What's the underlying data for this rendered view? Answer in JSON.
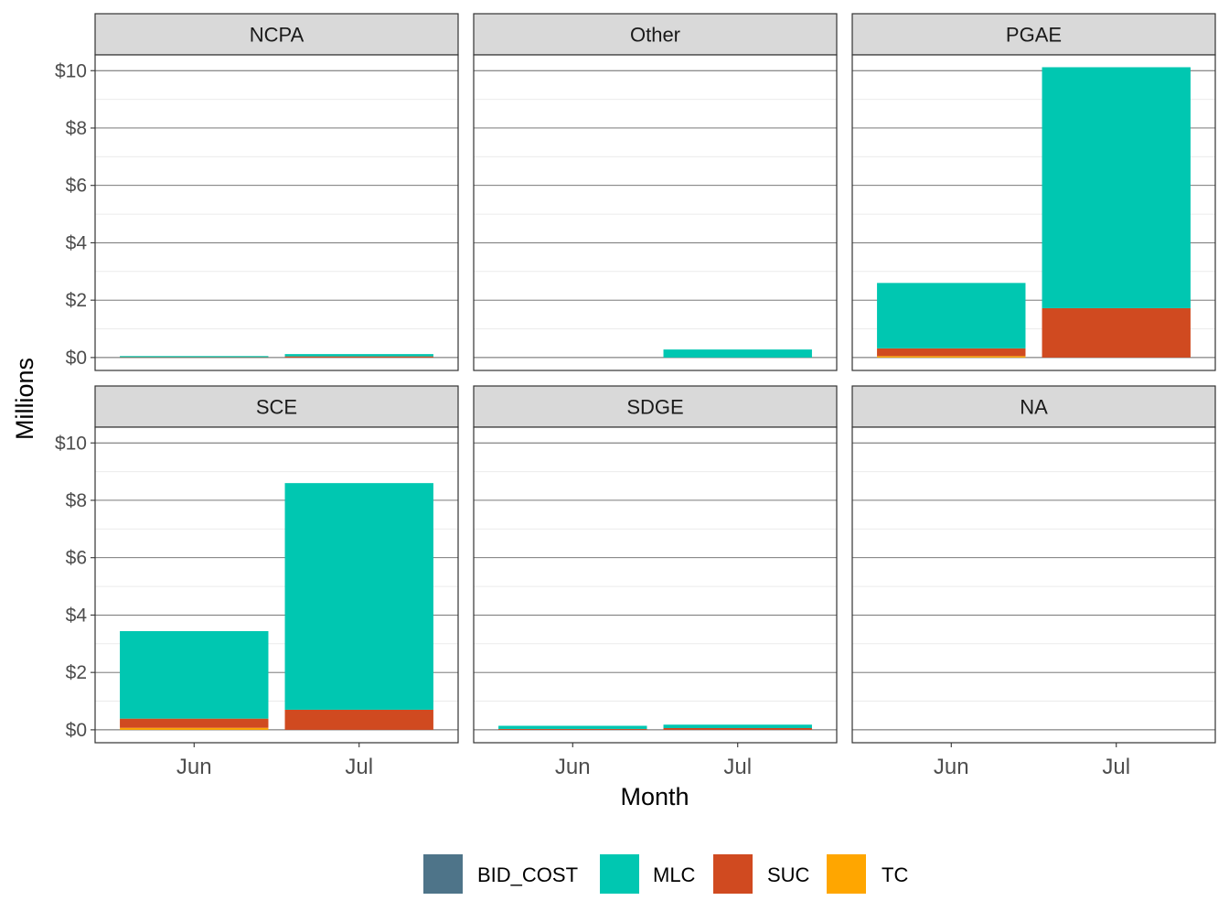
{
  "chart_data": {
    "type": "bar",
    "stacked": true,
    "facet_layout": "2 rows x 3 columns, shared axes",
    "xlabel": "Month",
    "ylabel": "Millions",
    "ylim": [
      -0.45,
      10.55
    ],
    "y_ticks": [
      0,
      2,
      4,
      6,
      8,
      10
    ],
    "y_tick_labels": [
      "$0",
      "$2",
      "$4",
      "$6",
      "$8",
      "$10"
    ],
    "categories": [
      "Jun",
      "Jul"
    ],
    "grid": true,
    "legend_position": "bottom",
    "series": [
      {
        "name": "BID_COST",
        "color": "#4e7489"
      },
      {
        "name": "MLC",
        "color": "#00c7b1"
      },
      {
        "name": "SUC",
        "color": "#d04a20"
      },
      {
        "name": "TC",
        "color": "#ffa600"
      }
    ],
    "stack_order_bottom_to_top": [
      "TC",
      "SUC",
      "MLC",
      "BID_COST"
    ],
    "panels": [
      {
        "title": "NCPA",
        "values": {
          "Jun": {
            "BID_COST": 0,
            "MLC": 0.04,
            "SUC": 0.01,
            "TC": 0
          },
          "Jul": {
            "BID_COST": 0,
            "MLC": 0.08,
            "SUC": 0.04,
            "TC": 0
          }
        }
      },
      {
        "title": "Other",
        "values": {
          "Jun": {
            "BID_COST": 0,
            "MLC": 0,
            "SUC": 0,
            "TC": 0
          },
          "Jul": {
            "BID_COST": 0,
            "MLC": 0.28,
            "SUC": 0,
            "TC": 0
          }
        }
      },
      {
        "title": "PGAE",
        "values": {
          "Jun": {
            "BID_COST": 0,
            "MLC": 2.28,
            "SUC": 0.27,
            "TC": 0.05
          },
          "Jul": {
            "BID_COST": 0,
            "MLC": 8.4,
            "SUC": 1.72,
            "TC": 0
          }
        }
      },
      {
        "title": "SCE",
        "values": {
          "Jun": {
            "BID_COST": 0,
            "MLC": 3.05,
            "SUC": 0.32,
            "TC": 0.07
          },
          "Jul": {
            "BID_COST": 0,
            "MLC": 7.9,
            "SUC": 0.7,
            "TC": 0
          }
        }
      },
      {
        "title": "SDGE",
        "values": {
          "Jun": {
            "BID_COST": 0,
            "MLC": 0.11,
            "SUC": 0.03,
            "TC": 0
          },
          "Jul": {
            "BID_COST": 0,
            "MLC": 0.12,
            "SUC": 0.06,
            "TC": 0
          }
        }
      },
      {
        "title": "NA",
        "values": {
          "Jun": {
            "BID_COST": 0,
            "MLC": 0,
            "SUC": 0,
            "TC": 0
          },
          "Jul": {
            "BID_COST": 0,
            "MLC": 0,
            "SUC": 0,
            "TC": 0
          }
        }
      }
    ]
  }
}
